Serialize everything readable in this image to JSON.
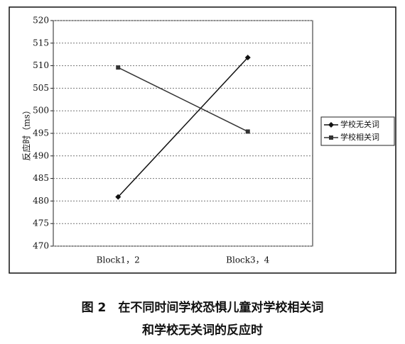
{
  "chart_data": {
    "type": "line",
    "y_label": "反应时（ms）",
    "categories": [
      "Block1，2",
      "Block3，4"
    ],
    "series": [
      {
        "name": "学校无关词",
        "color": "#111111",
        "marker": "diamond",
        "values": [
          480.9,
          511.8
        ]
      },
      {
        "name": "学校相关词",
        "color": "#333333",
        "marker": "square",
        "values": [
          509.6,
          495.4
        ]
      }
    ],
    "ylim": [
      470,
      520
    ],
    "yticks": [
      470,
      475,
      480,
      485,
      490,
      495,
      500,
      505,
      510,
      515,
      520
    ],
    "grid": true,
    "legend": "right",
    "caption": [
      "图 2　在不同时间学校恐惧儿童对学校相关词",
      "和学校无关词的反应时"
    ]
  }
}
